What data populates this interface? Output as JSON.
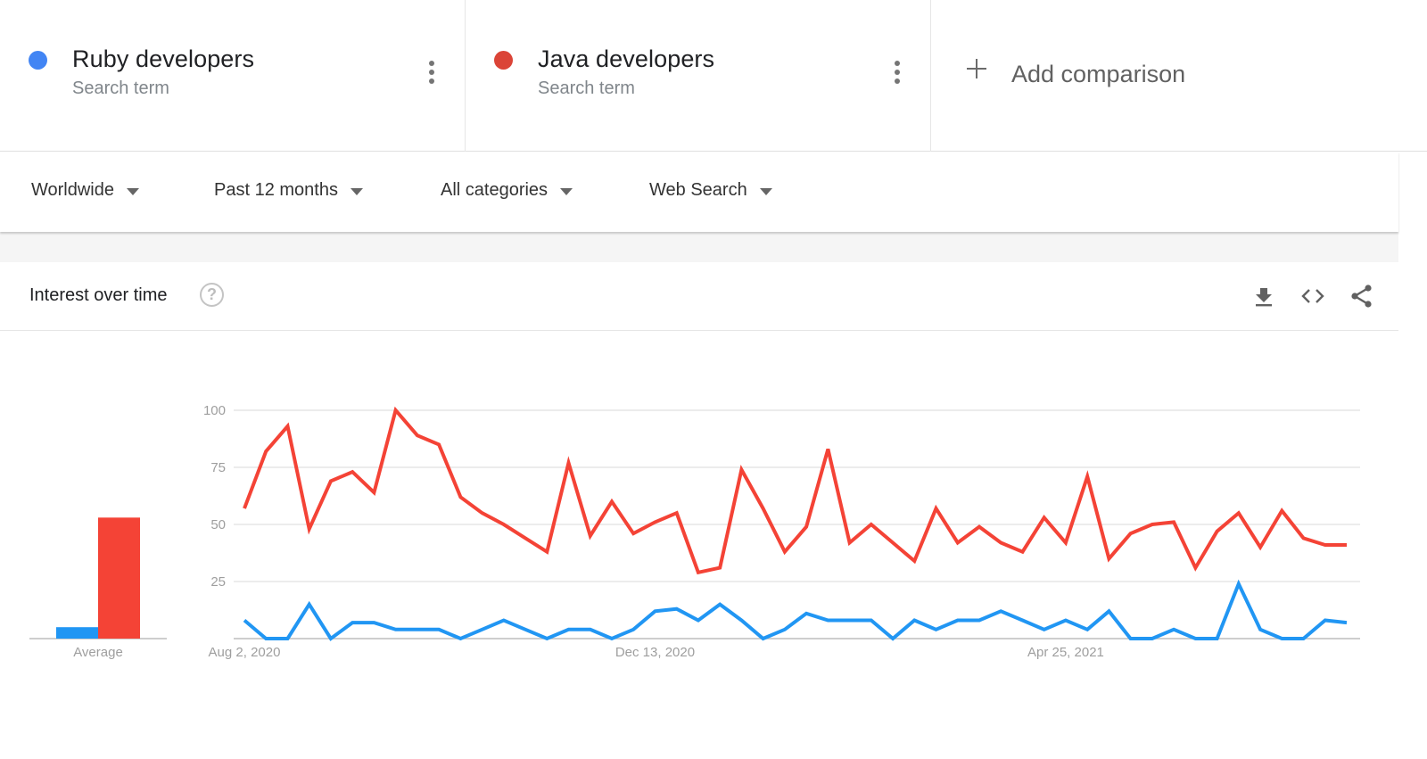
{
  "compare": {
    "terms": [
      {
        "label": "Ruby developers",
        "sublabel": "Search term",
        "color": "#4285f4"
      },
      {
        "label": "Java developers",
        "sublabel": "Search term",
        "color": "#db4437"
      }
    ],
    "add_comparison_label": "Add comparison"
  },
  "filters": [
    {
      "label": "Worldwide"
    },
    {
      "label": "Past 12 months"
    },
    {
      "label": "All categories"
    },
    {
      "label": "Web Search"
    }
  ],
  "card": {
    "title": "Interest over time",
    "help_icon": "help-circle-icon",
    "actions": [
      "download-icon",
      "embed-code-icon",
      "share-icon"
    ]
  },
  "chart_data": {
    "type": "line",
    "title": "Interest over time",
    "xlabel": "",
    "ylabel": "",
    "ylim": [
      0,
      100
    ],
    "yticks": [
      25,
      50,
      75,
      100
    ],
    "grid": true,
    "x_tick_labels": [
      {
        "label": "Aug 2, 2020",
        "index": 0
      },
      {
        "label": "Dec 13, 2020",
        "index": 19
      },
      {
        "label": "Apr 25, 2021",
        "index": 38
      }
    ],
    "points": 52,
    "series": [
      {
        "name": "Ruby developers",
        "color": "#2196f3",
        "values": [
          8,
          0,
          0,
          15,
          0,
          7,
          7,
          4,
          4,
          4,
          0,
          4,
          8,
          4,
          0,
          4,
          4,
          0,
          4,
          12,
          13,
          8,
          15,
          8,
          0,
          4,
          11,
          8,
          8,
          8,
          0,
          8,
          4,
          8,
          8,
          12,
          8,
          4,
          8,
          4,
          12,
          0,
          0,
          4,
          0,
          0,
          24,
          4,
          0,
          0,
          8,
          7
        ]
      },
      {
        "name": "Java developers",
        "color": "#f44336",
        "values": [
          57,
          82,
          93,
          48,
          69,
          73,
          64,
          100,
          89,
          85,
          62,
          55,
          50,
          44,
          38,
          77,
          45,
          60,
          46,
          51,
          55,
          29,
          31,
          74,
          57,
          38,
          49,
          83,
          42,
          50,
          42,
          34,
          57,
          42,
          49,
          42,
          38,
          53,
          42,
          71,
          35,
          46,
          50,
          51,
          31,
          47,
          55,
          40,
          56,
          44,
          41,
          41
        ]
      }
    ],
    "average": {
      "label": "Average",
      "values": [
        {
          "name": "Ruby developers",
          "value": 5,
          "color": "#2196f3"
        },
        {
          "name": "Java developers",
          "value": 53,
          "color": "#f44336"
        }
      ]
    }
  }
}
